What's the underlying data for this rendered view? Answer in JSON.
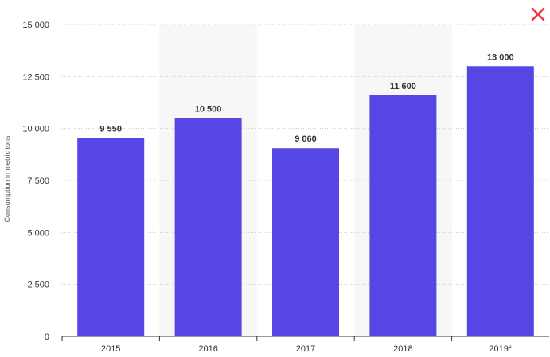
{
  "chart_data": {
    "type": "bar",
    "categories": [
      "2015",
      "2016",
      "2017",
      "2018",
      "2019*"
    ],
    "values": [
      9550,
      10500,
      9060,
      11600,
      13000
    ],
    "data_labels": [
      "9 550",
      "10 500",
      "9 060",
      "11 600",
      "13 000"
    ],
    "title": "",
    "xlabel": "",
    "ylabel": "Consumption in metric tons",
    "ylim": [
      0,
      15000
    ],
    "yticks": [
      0,
      2500,
      5000,
      7500,
      10000,
      12500,
      15000
    ],
    "ytick_labels": [
      "0",
      "2 500",
      "5 000",
      "7 500",
      "10 000",
      "12 500",
      "15 000"
    ],
    "grid": true,
    "legend": "none"
  },
  "colors": {
    "bar": "#5646e6",
    "band": "#f7f7f7",
    "grid": "#c8c8c8",
    "close": "#ee3344"
  },
  "close_icon": "close-icon"
}
